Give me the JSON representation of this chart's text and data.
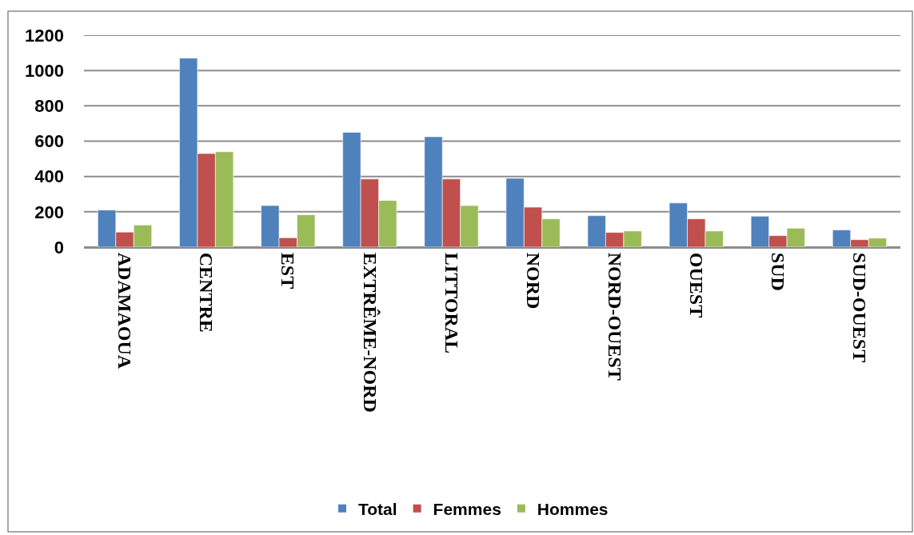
{
  "chart_data": {
    "type": "bar",
    "categories": [
      "ADAMAOUA",
      "CENTRE",
      "EST",
      "EXTRÊME-NORD",
      "LITTORAL",
      "NORD",
      "NORD-OUEST",
      "OUEST",
      "SUD",
      "SUD-OUEST"
    ],
    "series": [
      {
        "name": "Total",
        "color": "#4f81bd",
        "values": [
          210,
          1070,
          235,
          650,
          625,
          390,
          178,
          250,
          175,
          97
        ]
      },
      {
        "name": "Femmes",
        "color": "#c0504d",
        "values": [
          85,
          530,
          53,
          386,
          386,
          226,
          83,
          160,
          65,
          42
        ]
      },
      {
        "name": "Hommes",
        "color": "#9bbb59",
        "values": [
          125,
          540,
          183,
          264,
          235,
          160,
          91,
          91,
          107,
          51
        ]
      }
    ],
    "ylim": [
      0,
      1200
    ],
    "yticks": [
      0,
      200,
      400,
      600,
      800,
      1000,
      1200
    ],
    "grid": "y",
    "legend": "bottom"
  }
}
